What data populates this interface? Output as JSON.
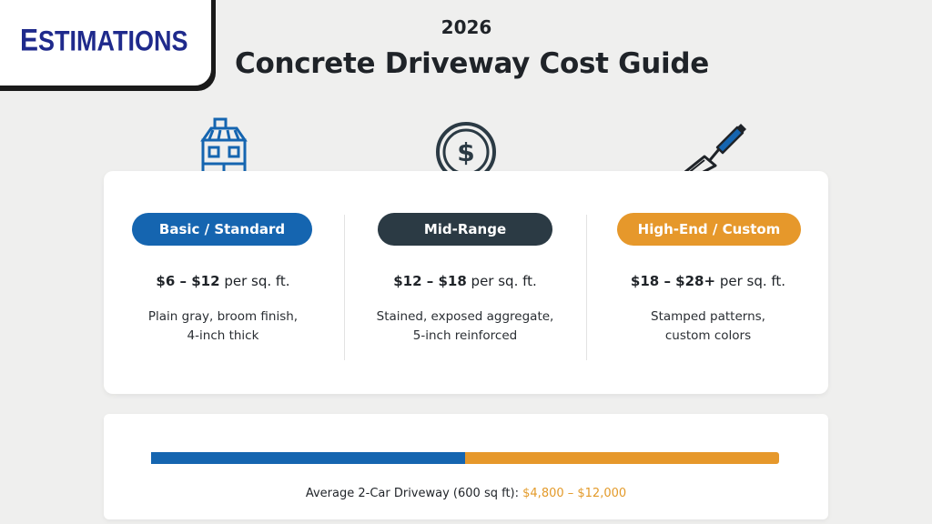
{
  "brand": {
    "logo_first": "E",
    "logo_rest": "STIMATIONS",
    "color": "#1f2a8c"
  },
  "header": {
    "year": "2026",
    "title": "Concrete Driveway Cost Guide"
  },
  "tiers": [
    {
      "label": "Basic / Standard",
      "price_range": "$6 – $12",
      "unit": " per sq. ft.",
      "desc_line1": "Plain gray, broom finish,",
      "desc_line2": "4-inch thick",
      "color": "#1565b0",
      "icon": "house-icon"
    },
    {
      "label": "Mid-Range",
      "price_range": "$12 – $18",
      "unit": " per sq. ft.",
      "desc_line1": "Stained, exposed aggregate,",
      "desc_line2": "5-inch reinforced",
      "color": "#2b3a44",
      "icon": "dollar-coin-icon"
    },
    {
      "label": "High-End / Custom",
      "price_range": "$18 – $28+",
      "unit": " per sq. ft.",
      "desc_line1": "Stamped patterns,",
      "desc_line2": "custom colors",
      "color": "#e6982b",
      "icon": "trowel-icon"
    }
  ],
  "average": {
    "label": "Average 2-Car Driveway (600 sq ft): ",
    "range": "$4,800 – $12,000",
    "bar_split_fraction": 0.5,
    "bar_colors": [
      "#1565b0",
      "#e6982b"
    ]
  }
}
